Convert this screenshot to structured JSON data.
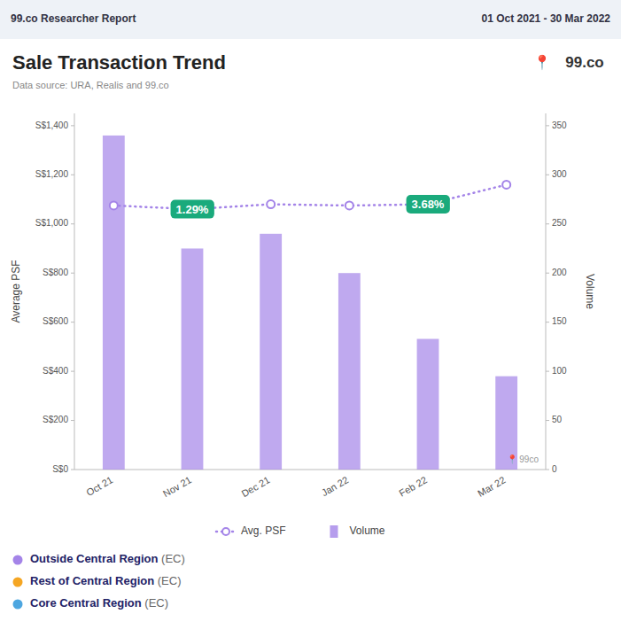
{
  "chart_data": {
    "type": "bar",
    "title": "Sale Transaction Trend",
    "subtitle": "Data source: URA, Realis and 99.co",
    "header_left": "99.co Researcher Report",
    "header_right": "01 Oct 2021 - 30 Mar 2022",
    "logo_icon": "📍",
    "logo": "99.co",
    "watermark": "📍 99co",
    "categories": [
      "Oct 21",
      "Nov 21",
      "Dec 21",
      "Jan 22",
      "Feb 22",
      "Mar 22"
    ],
    "series": [
      {
        "name": "Avg. PSF",
        "type": "line",
        "color": "#a484e8",
        "line_style": "dotted",
        "marker": "circle",
        "values": [
          1075,
          1060,
          1080,
          1075,
          1080,
          1160
        ]
      },
      {
        "name": "Volume",
        "type": "bar",
        "color": "#a484e8",
        "axis": "y2",
        "values": [
          340,
          225,
          240,
          200,
          133,
          95
        ]
      }
    ],
    "ylabel": "Average PSF",
    "y2label": "Volume",
    "ylim": [
      0,
      1450
    ],
    "yticks": [
      {
        "value": 0,
        "label": "S$0"
      },
      {
        "value": 200,
        "label": "S$200"
      },
      {
        "value": 400,
        "label": "S$400"
      },
      {
        "value": 600,
        "label": "S$600"
      },
      {
        "value": 800,
        "label": "S$800"
      },
      {
        "value": 1000,
        "label": "S$1,000"
      },
      {
        "value": 1200,
        "label": "S$1,200"
      },
      {
        "value": 1400,
        "label": "S$1,400"
      }
    ],
    "y2lim": [
      0,
      362.5
    ],
    "y2ticks": [
      0,
      50,
      100,
      150,
      200,
      250,
      300,
      350
    ],
    "annotations": [
      {
        "category": "Nov 21",
        "y": 1060,
        "text": "1.29%",
        "color": "#1aaa7c"
      },
      {
        "category": "Feb 22",
        "y": 1080,
        "text": "3.68%",
        "color": "#1aaa7c"
      }
    ],
    "regions": [
      {
        "name": "Outside Central Region",
        "suffix": " (EC)",
        "color": "#a484e8"
      },
      {
        "name": "Rest of Central Region",
        "suffix": " (EC)",
        "color": "#f5a623"
      },
      {
        "name": "Core Central Region",
        "suffix": " (EC)",
        "color": "#4da6e0"
      }
    ],
    "grid": false,
    "legend": "bottom"
  }
}
